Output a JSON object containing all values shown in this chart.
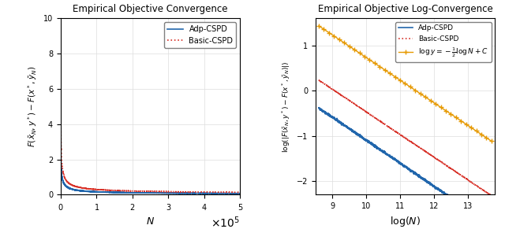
{
  "title_left": "Empirical Objective Convergence",
  "title_right": "Empirical Objective Log-Convergence",
  "xlabel_left": "N",
  "xlabel_right": "log(N)",
  "ylabel_left": "F(\\bar{x}_N, y^*) - F(x^*, \\bar{y}_N)",
  "ylabel_right": "log(|F(\\bar{x}_N, y^*) - F(x^*, \\bar{y}_N)|)",
  "xlim_left": [
    0,
    500000
  ],
  "ylim_left": [
    0,
    10
  ],
  "xlim_right": [
    8.5,
    13.8
  ],
  "ylim_right": [
    -2.3,
    1.6
  ],
  "yticks_left": [
    0,
    2,
    4,
    6,
    8,
    10
  ],
  "xticks_right": [
    9,
    10,
    11,
    12,
    13
  ],
  "yticks_right": [
    -2,
    -1,
    0,
    1
  ],
  "color_adp": "#2166ac",
  "color_basic": "#d73027",
  "color_ref": "#e69900",
  "N_max": 500000,
  "N_start": 100,
  "legend_entries_left": [
    "Adp-CSPD",
    "Basic-CSPD"
  ],
  "legend_entries_right": [
    "Adp-CSPD",
    "Basic-CSPD",
    "log y = -\\frac{1}{2} log N + C"
  ]
}
